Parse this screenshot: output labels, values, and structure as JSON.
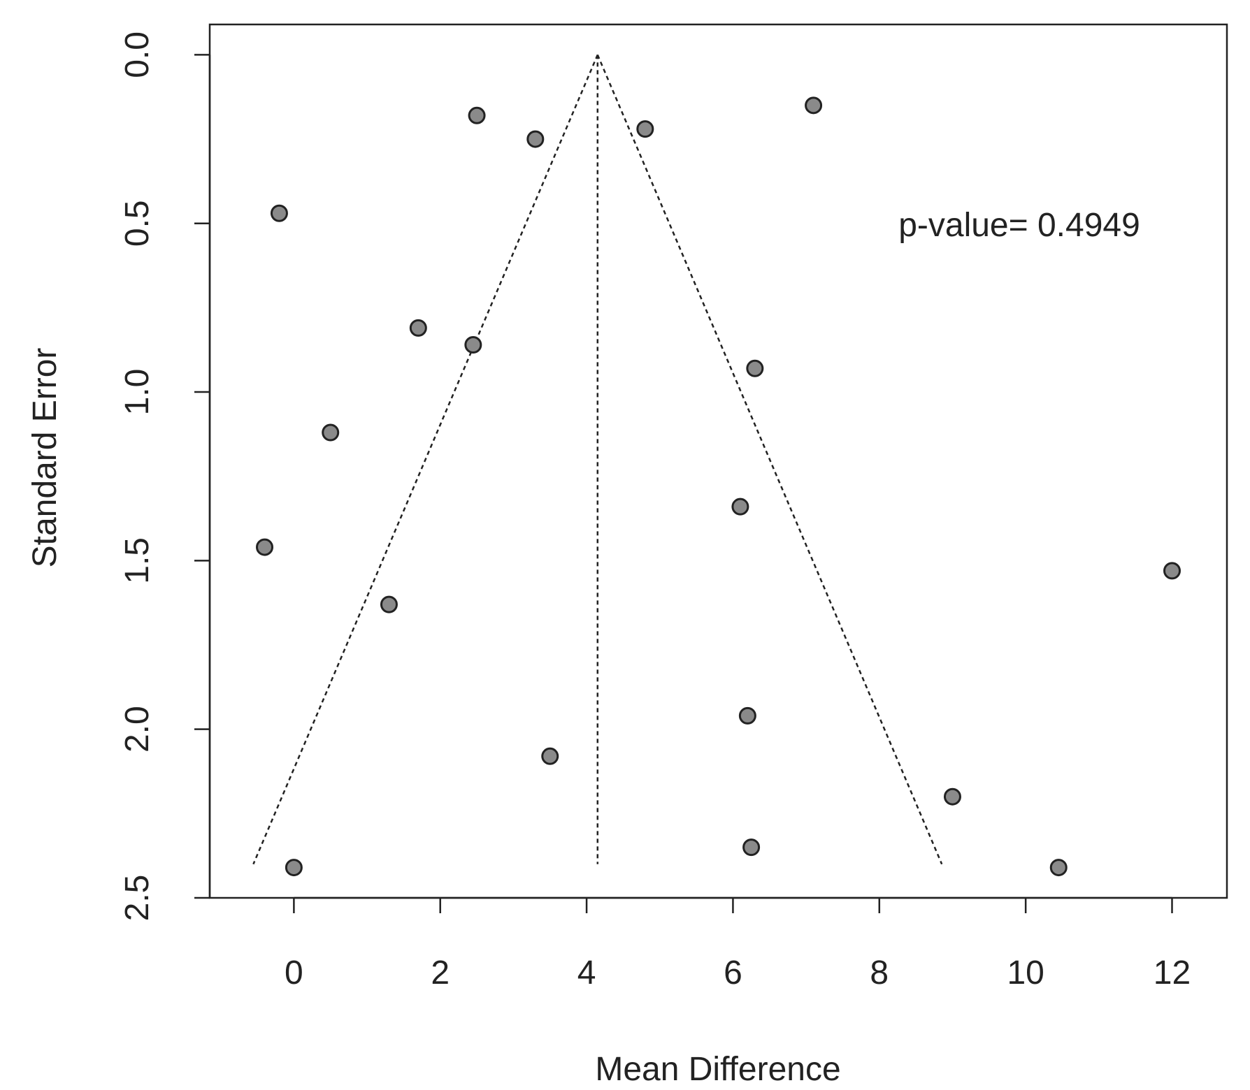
{
  "chart_data": {
    "type": "scatter",
    "title": "",
    "xlabel": "Mean Difference",
    "ylabel": "Standard Error",
    "xlim": [
      -1.15,
      12.75
    ],
    "ylim": [
      2.5,
      -0.09
    ],
    "y_axis_reversed": true,
    "xticks": [
      0,
      2,
      4,
      6,
      8,
      10,
      12
    ],
    "yticks": [
      0.0,
      0.5,
      1.0,
      1.5,
      2.0,
      2.5
    ],
    "ytick_labels": [
      "0.0",
      "0.5",
      "1.0",
      "1.5",
      "2.0",
      "2.5"
    ],
    "grid": false,
    "legend": "none",
    "annotation": "p-value= 0.4949",
    "pooled_estimate": 4.15,
    "funnel_max_se": 2.4,
    "series": [
      {
        "x": [
          2.5,
          3.3,
          4.8,
          7.1,
          -0.2,
          1.7,
          2.45,
          6.3,
          0.5,
          6.1,
          -0.4,
          12.0,
          1.3,
          6.2,
          3.5,
          9.0,
          6.25,
          0.0,
          10.45
        ],
        "y": [
          0.18,
          0.25,
          0.22,
          0.15,
          0.47,
          0.81,
          0.86,
          0.93,
          1.12,
          1.34,
          1.46,
          1.53,
          1.63,
          1.96,
          2.08,
          2.2,
          2.35,
          2.41,
          2.41
        ]
      }
    ],
    "colors": {
      "point_fill": "#8a8a8a",
      "point_stroke": "#222222",
      "line": "#222222"
    }
  }
}
